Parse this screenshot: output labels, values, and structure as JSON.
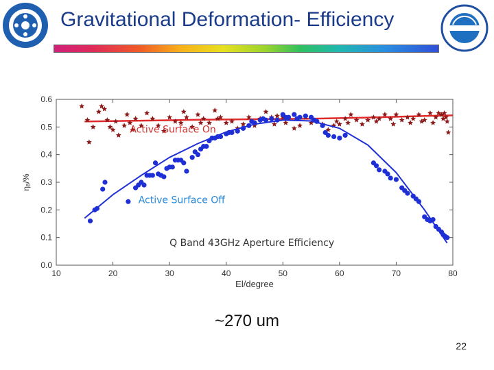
{
  "slide": {
    "title": "Gravitational Deformation- Efficiency",
    "caption": "~270 um",
    "page_number": "22"
  },
  "colors": {
    "title": "#1a3a8a",
    "active_on": "#b22222",
    "active_off": "#2233dd",
    "stars": "#8b1a1a",
    "dots": "#1f2fd6"
  },
  "chart_data": {
    "type": "scatter",
    "title": "",
    "xlabel": "El/degree",
    "ylabel": "ηₐ/%",
    "xlim": [
      10,
      80
    ],
    "ylim": [
      0.0,
      0.6
    ],
    "x_ticks": [
      10,
      20,
      30,
      40,
      50,
      60,
      70,
      80
    ],
    "y_ticks": [
      "0.0",
      "0.1",
      "0.2",
      "0.3",
      "0.4",
      "0.5",
      "0.6"
    ],
    "annotations": [
      {
        "text": "Active Surface On",
        "x": 23,
        "y": 0.48,
        "color": "#d03030"
      },
      {
        "text": "Active Surface Off",
        "x": 24.5,
        "y": 0.225,
        "color": "#2a8ad8"
      },
      {
        "text": "Q Band 43GHz Aperture Efficiency",
        "x": 30,
        "y": 0.07,
        "color": "#333333"
      }
    ],
    "series": [
      {
        "name": "Active Surface On",
        "marker": "star",
        "points": [
          [
            14.5,
            0.575
          ],
          [
            15.5,
            0.525
          ],
          [
            15.8,
            0.445
          ],
          [
            16.5,
            0.5
          ],
          [
            17.5,
            0.555
          ],
          [
            18,
            0.575
          ],
          [
            18.5,
            0.565
          ],
          [
            19,
            0.525
          ],
          [
            19.5,
            0.5
          ],
          [
            20,
            0.49
          ],
          [
            20.5,
            0.52
          ],
          [
            21,
            0.47
          ],
          [
            22,
            0.505
          ],
          [
            22.5,
            0.545
          ],
          [
            23,
            0.515
          ],
          [
            23.5,
            0.49
          ],
          [
            24,
            0.53
          ],
          [
            25,
            0.505
          ],
          [
            26,
            0.55
          ],
          [
            27,
            0.53
          ],
          [
            28,
            0.505
          ],
          [
            29,
            0.485
          ],
          [
            30,
            0.535
          ],
          [
            31,
            0.52
          ],
          [
            32,
            0.515
          ],
          [
            32.5,
            0.555
          ],
          [
            33,
            0.535
          ],
          [
            34,
            0.5
          ],
          [
            35,
            0.545
          ],
          [
            35.5,
            0.515
          ],
          [
            36,
            0.53
          ],
          [
            37,
            0.515
          ],
          [
            38,
            0.56
          ],
          [
            38.5,
            0.53
          ],
          [
            39,
            0.535
          ],
          [
            40,
            0.515
          ],
          [
            41,
            0.52
          ],
          [
            42,
            0.495
          ],
          [
            43,
            0.51
          ],
          [
            44,
            0.535
          ],
          [
            45,
            0.505
          ],
          [
            46,
            0.53
          ],
          [
            47,
            0.555
          ],
          [
            48,
            0.535
          ],
          [
            48.5,
            0.51
          ],
          [
            49,
            0.54
          ],
          [
            50,
            0.535
          ],
          [
            50.5,
            0.515
          ],
          [
            51,
            0.53
          ],
          [
            52,
            0.495
          ],
          [
            53,
            0.505
          ],
          [
            54,
            0.535
          ],
          [
            55,
            0.515
          ],
          [
            56,
            0.52
          ],
          [
            57,
            0.51
          ],
          [
            58,
            0.49
          ],
          [
            59,
            0.505
          ],
          [
            59.5,
            0.52
          ],
          [
            60,
            0.51
          ],
          [
            61,
            0.53
          ],
          [
            61.5,
            0.515
          ],
          [
            62,
            0.545
          ],
          [
            63,
            0.525
          ],
          [
            64,
            0.51
          ],
          [
            65,
            0.525
          ],
          [
            66,
            0.535
          ],
          [
            66.5,
            0.52
          ],
          [
            67,
            0.53
          ],
          [
            68,
            0.545
          ],
          [
            69,
            0.53
          ],
          [
            69.5,
            0.51
          ],
          [
            70,
            0.545
          ],
          [
            71,
            0.525
          ],
          [
            72,
            0.535
          ],
          [
            72.5,
            0.515
          ],
          [
            73,
            0.53
          ],
          [
            74,
            0.545
          ],
          [
            74.5,
            0.52
          ],
          [
            75,
            0.525
          ],
          [
            76,
            0.55
          ],
          [
            76.5,
            0.515
          ],
          [
            77,
            0.535
          ],
          [
            77.5,
            0.55
          ],
          [
            78,
            0.545
          ],
          [
            78.3,
            0.53
          ],
          [
            78.5,
            0.55
          ],
          [
            78.8,
            0.535
          ],
          [
            79,
            0.52
          ],
          [
            79.2,
            0.48
          ]
        ],
        "fit": [
          [
            15,
            0.52
          ],
          [
            25,
            0.523
          ],
          [
            35,
            0.526
          ],
          [
            45,
            0.528
          ],
          [
            55,
            0.53
          ],
          [
            65,
            0.534
          ],
          [
            75,
            0.54
          ],
          [
            80,
            0.542
          ]
        ]
      },
      {
        "name": "Active Surface Off",
        "marker": "circle",
        "points": [
          [
            16,
            0.16
          ],
          [
            16.8,
            0.2
          ],
          [
            17.2,
            0.205
          ],
          [
            18.2,
            0.275
          ],
          [
            18.6,
            0.3
          ],
          [
            22.7,
            0.23
          ],
          [
            24,
            0.28
          ],
          [
            24.5,
            0.29
          ],
          [
            25,
            0.3
          ],
          [
            25.5,
            0.29
          ],
          [
            26,
            0.325
          ],
          [
            26.5,
            0.325
          ],
          [
            27,
            0.325
          ],
          [
            27.5,
            0.37
          ],
          [
            28,
            0.33
          ],
          [
            28.5,
            0.325
          ],
          [
            29,
            0.32
          ],
          [
            29.5,
            0.35
          ],
          [
            30,
            0.355
          ],
          [
            30.5,
            0.355
          ],
          [
            31,
            0.38
          ],
          [
            31.5,
            0.38
          ],
          [
            32,
            0.38
          ],
          [
            32.5,
            0.37
          ],
          [
            33,
            0.34
          ],
          [
            34,
            0.39
          ],
          [
            34.5,
            0.41
          ],
          [
            35,
            0.4
          ],
          [
            35.5,
            0.42
          ],
          [
            36,
            0.43
          ],
          [
            36.5,
            0.43
          ],
          [
            37,
            0.45
          ],
          [
            37.5,
            0.46
          ],
          [
            38,
            0.46
          ],
          [
            38.5,
            0.465
          ],
          [
            39,
            0.465
          ],
          [
            40,
            0.475
          ],
          [
            40.5,
            0.48
          ],
          [
            41,
            0.48
          ],
          [
            42,
            0.485
          ],
          [
            43,
            0.495
          ],
          [
            44,
            0.505
          ],
          [
            44.5,
            0.52
          ],
          [
            45,
            0.515
          ],
          [
            46,
            0.525
          ],
          [
            46.5,
            0.53
          ],
          [
            47,
            0.525
          ],
          [
            48,
            0.53
          ],
          [
            49,
            0.525
          ],
          [
            50,
            0.545
          ],
          [
            50.5,
            0.535
          ],
          [
            51,
            0.535
          ],
          [
            52,
            0.545
          ],
          [
            52.5,
            0.53
          ],
          [
            53,
            0.535
          ],
          [
            54,
            0.54
          ],
          [
            55,
            0.535
          ],
          [
            55.5,
            0.525
          ],
          [
            56,
            0.52
          ],
          [
            57,
            0.505
          ],
          [
            57.5,
            0.48
          ],
          [
            58,
            0.47
          ],
          [
            59,
            0.465
          ],
          [
            60,
            0.46
          ],
          [
            61,
            0.47
          ],
          [
            66,
            0.37
          ],
          [
            66.5,
            0.36
          ],
          [
            67,
            0.345
          ],
          [
            68,
            0.34
          ],
          [
            68.5,
            0.33
          ],
          [
            69,
            0.315
          ],
          [
            70,
            0.31
          ],
          [
            71,
            0.28
          ],
          [
            71.5,
            0.27
          ],
          [
            72,
            0.26
          ],
          [
            73,
            0.25
          ],
          [
            73.5,
            0.24
          ],
          [
            74,
            0.23
          ],
          [
            75,
            0.175
          ],
          [
            75.5,
            0.165
          ],
          [
            76,
            0.16
          ],
          [
            76.5,
            0.165
          ],
          [
            77,
            0.14
          ],
          [
            77.5,
            0.13
          ],
          [
            78,
            0.12
          ],
          [
            78.3,
            0.11
          ],
          [
            78.6,
            0.105
          ],
          [
            79,
            0.1
          ]
        ],
        "fit": [
          [
            15,
            0.17
          ],
          [
            20,
            0.255
          ],
          [
            25,
            0.325
          ],
          [
            30,
            0.39
          ],
          [
            35,
            0.44
          ],
          [
            40,
            0.482
          ],
          [
            45,
            0.51
          ],
          [
            50,
            0.525
          ],
          [
            55,
            0.522
          ],
          [
            60,
            0.495
          ],
          [
            65,
            0.435
          ],
          [
            70,
            0.335
          ],
          [
            75,
            0.2
          ],
          [
            79,
            0.08
          ]
        ]
      }
    ],
    "grid": false,
    "legend": "none"
  }
}
